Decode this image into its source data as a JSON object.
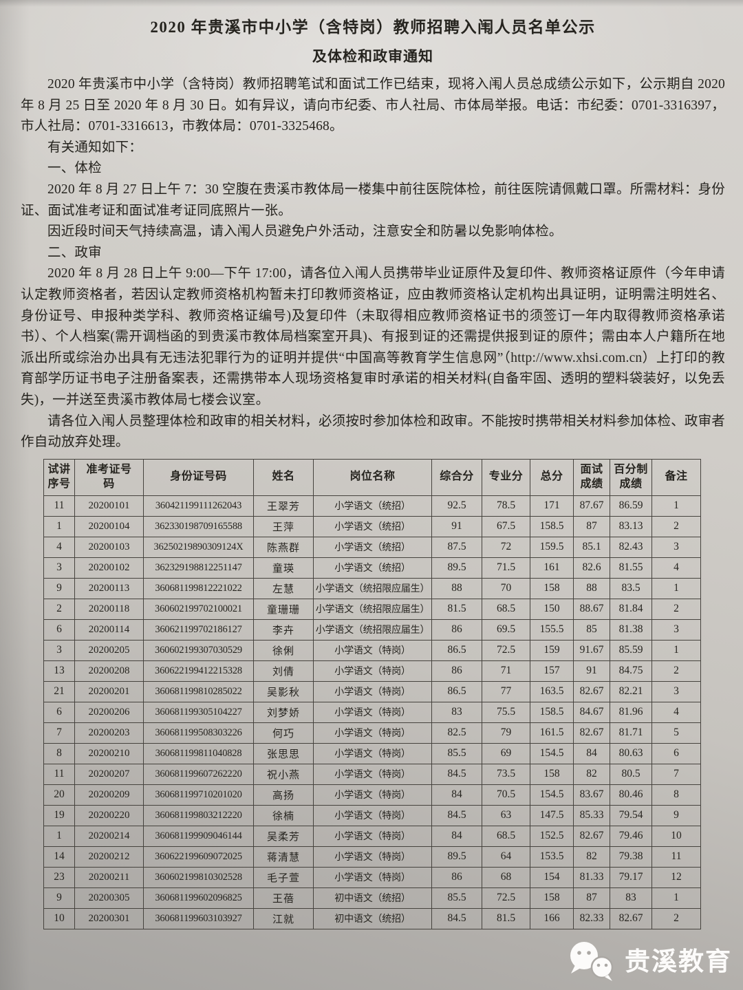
{
  "document": {
    "title_line1": "2020 年贵溪市中小学（含特岗）教师招聘入闱人员名单公示",
    "title_line2": "及体检和政审通知",
    "paragraphs": [
      "2020 年贵溪市中小学（含特岗）教师招聘笔试和面试工作已结束，现将入闱人员总成绩公示如下，公示期自 2020 年 8 月 25 日至 2020 年 8 月 30 日。如有异议，请向市纪委、市人社局、市体局举报。电话：市纪委：0701-3316397，市人社局：0701-3316613，市教体局：0701-3325468。",
      "有关通知如下：",
      "一、体检",
      "2020 年 8 月 27 日上午 7：30 空腹在贵溪市教体局一楼集中前往医院体检，前往医院请佩戴口罩。所需材料：身份证、面试准考证和面试准考证同底照片一张。",
      "因近段时间天气持续高温，请入闱人员避免户外活动，注意安全和防暑以免影响体检。",
      "二、政审",
      "2020 年 8 月 28 日上午 9:00—下午 17:00，请各位入闱人员携带毕业证原件及复印件、教师资格证原件（今年申请认定教师资格者，若因认定教师资格机构暂未打印教师资格证，应由教师资格认定机构出具证明，证明需注明姓名、身份证号、申报种类学科、教师资格证编号)及复印件（未取得相应教师资格证书的须签订一年内取得教师资格承诺书）、个人档案(需开调档函的到贵溪市教体局档案室开具)、有报到证的还需提供报到证的原件；需由本人户籍所在地派出所或综治办出具有无违法犯罪行为的证明并提供“中国高等教育学生信息网”（http://www.xhsi.com.cn）上打印的教育部学历证书电子注册备案表，还需携带本人现场资格复审时承诺的相关材料(自备牢固、透明的塑料袋装好，以免丢失)，一并送至贵溪市教体局七楼会议室。",
      "请各位入闱人员整理体检和政审的相关材料，必须按时参加体检和政审。不能按时携带相关材料参加体检、政审者作自动放弃处理。"
    ]
  },
  "table": {
    "headers": [
      "试讲\n序号",
      "准考证号\n码",
      "身份证号码",
      "姓名",
      "岗位名称",
      "综合分",
      "专业分",
      "总分",
      "面试\n成绩",
      "百分制\n成绩",
      "备注"
    ],
    "rows": [
      [
        "11",
        "20200101",
        "360421199111262043",
        "王翠芳",
        "小学语文（统招）",
        "92.5",
        "78.5",
        "171",
        "87.67",
        "86.59",
        "1"
      ],
      [
        "1",
        "20200104",
        "362330198709165588",
        "王萍",
        "小学语文（统招）",
        "91",
        "67.5",
        "158.5",
        "87",
        "83.13",
        "2"
      ],
      [
        "4",
        "20200103",
        "36250219890309124X",
        "陈燕群",
        "小学语文（统招）",
        "87.5",
        "72",
        "159.5",
        "85.1",
        "82.43",
        "3"
      ],
      [
        "3",
        "20200102",
        "362329198812251147",
        "童瑛",
        "小学语文（统招）",
        "89.5",
        "71.5",
        "161",
        "82.6",
        "81.55",
        "4"
      ],
      [
        "9",
        "20200113",
        "360681199812221022",
        "左慧",
        "小学语文（统招限应届生）",
        "88",
        "70",
        "158",
        "88",
        "83.5",
        "1"
      ],
      [
        "2",
        "20200118",
        "360602199702100021",
        "童珊珊",
        "小学语文（统招限应届生）",
        "81.5",
        "68.5",
        "150",
        "88.67",
        "81.84",
        "2"
      ],
      [
        "6",
        "20200114",
        "360621199702186127",
        "李卉",
        "小学语文（统招限应届生）",
        "86",
        "69.5",
        "155.5",
        "85",
        "81.38",
        "3"
      ],
      [
        "3",
        "20200205",
        "360602199307030529",
        "徐俐",
        "小学语文（特岗）",
        "86.5",
        "72.5",
        "159",
        "91.67",
        "85.59",
        "1"
      ],
      [
        "13",
        "20200208",
        "360622199412215328",
        "刘倩",
        "小学语文（特岗）",
        "86",
        "71",
        "157",
        "91",
        "84.75",
        "2"
      ],
      [
        "21",
        "20200201",
        "360681199810285022",
        "吴影秋",
        "小学语文（特岗）",
        "86.5",
        "77",
        "163.5",
        "82.67",
        "82.21",
        "3"
      ],
      [
        "6",
        "20200206",
        "360681199305104227",
        "刘梦娇",
        "小学语文（特岗）",
        "83",
        "75.5",
        "158.5",
        "84.67",
        "81.96",
        "4"
      ],
      [
        "7",
        "20200203",
        "360681199508303226",
        "何巧",
        "小学语文（特岗）",
        "82.5",
        "79",
        "161.5",
        "82.67",
        "81.71",
        "5"
      ],
      [
        "8",
        "20200210",
        "360681199811040828",
        "张思思",
        "小学语文（特岗）",
        "85.5",
        "69",
        "154.5",
        "84",
        "80.63",
        "6"
      ],
      [
        "11",
        "20200207",
        "360681199607262220",
        "祝小燕",
        "小学语文（特岗）",
        "84.5",
        "73.5",
        "158",
        "82",
        "80.5",
        "7"
      ],
      [
        "20",
        "20200209",
        "360681199710201020",
        "高扬",
        "小学语文（特岗）",
        "84",
        "70.5",
        "154.5",
        "83.67",
        "80.46",
        "8"
      ],
      [
        "19",
        "20200220",
        "360681199803212220",
        "徐楠",
        "小学语文（特岗）",
        "84.5",
        "63",
        "147.5",
        "85.33",
        "79.54",
        "9"
      ],
      [
        "1",
        "20200214",
        "360681199909046144",
        "吴柔芳",
        "小学语文（特岗）",
        "84",
        "68.5",
        "152.5",
        "82.67",
        "79.46",
        "10"
      ],
      [
        "14",
        "20200212",
        "360622199609072025",
        "蒋清慧",
        "小学语文（特岗）",
        "89.5",
        "64",
        "153.5",
        "82",
        "79.38",
        "11"
      ],
      [
        "23",
        "20200211",
        "360602199810302528",
        "毛子萱",
        "小学语文（特岗）",
        "86",
        "68",
        "154",
        "81.33",
        "79.17",
        "12"
      ],
      [
        "9",
        "20200305",
        "360681199602096825",
        "王蓓",
        "初中语文（统招）",
        "85.5",
        "72.5",
        "158",
        "87",
        "83",
        "1"
      ],
      [
        "10",
        "20200301",
        "360681199603103927",
        "江就",
        "初中语文（统招）",
        "84.5",
        "81.5",
        "166",
        "82.33",
        "82.67",
        "2"
      ]
    ]
  },
  "watermark": {
    "account_name": "贵溪教育",
    "icon": "wechat-icon",
    "text_color": "#fcfbfa"
  },
  "colors": {
    "paper_light": "#d7d4d0",
    "paper_dark": "#a5a3a0",
    "ink": "#26241f",
    "table_border": "#45423d"
  }
}
